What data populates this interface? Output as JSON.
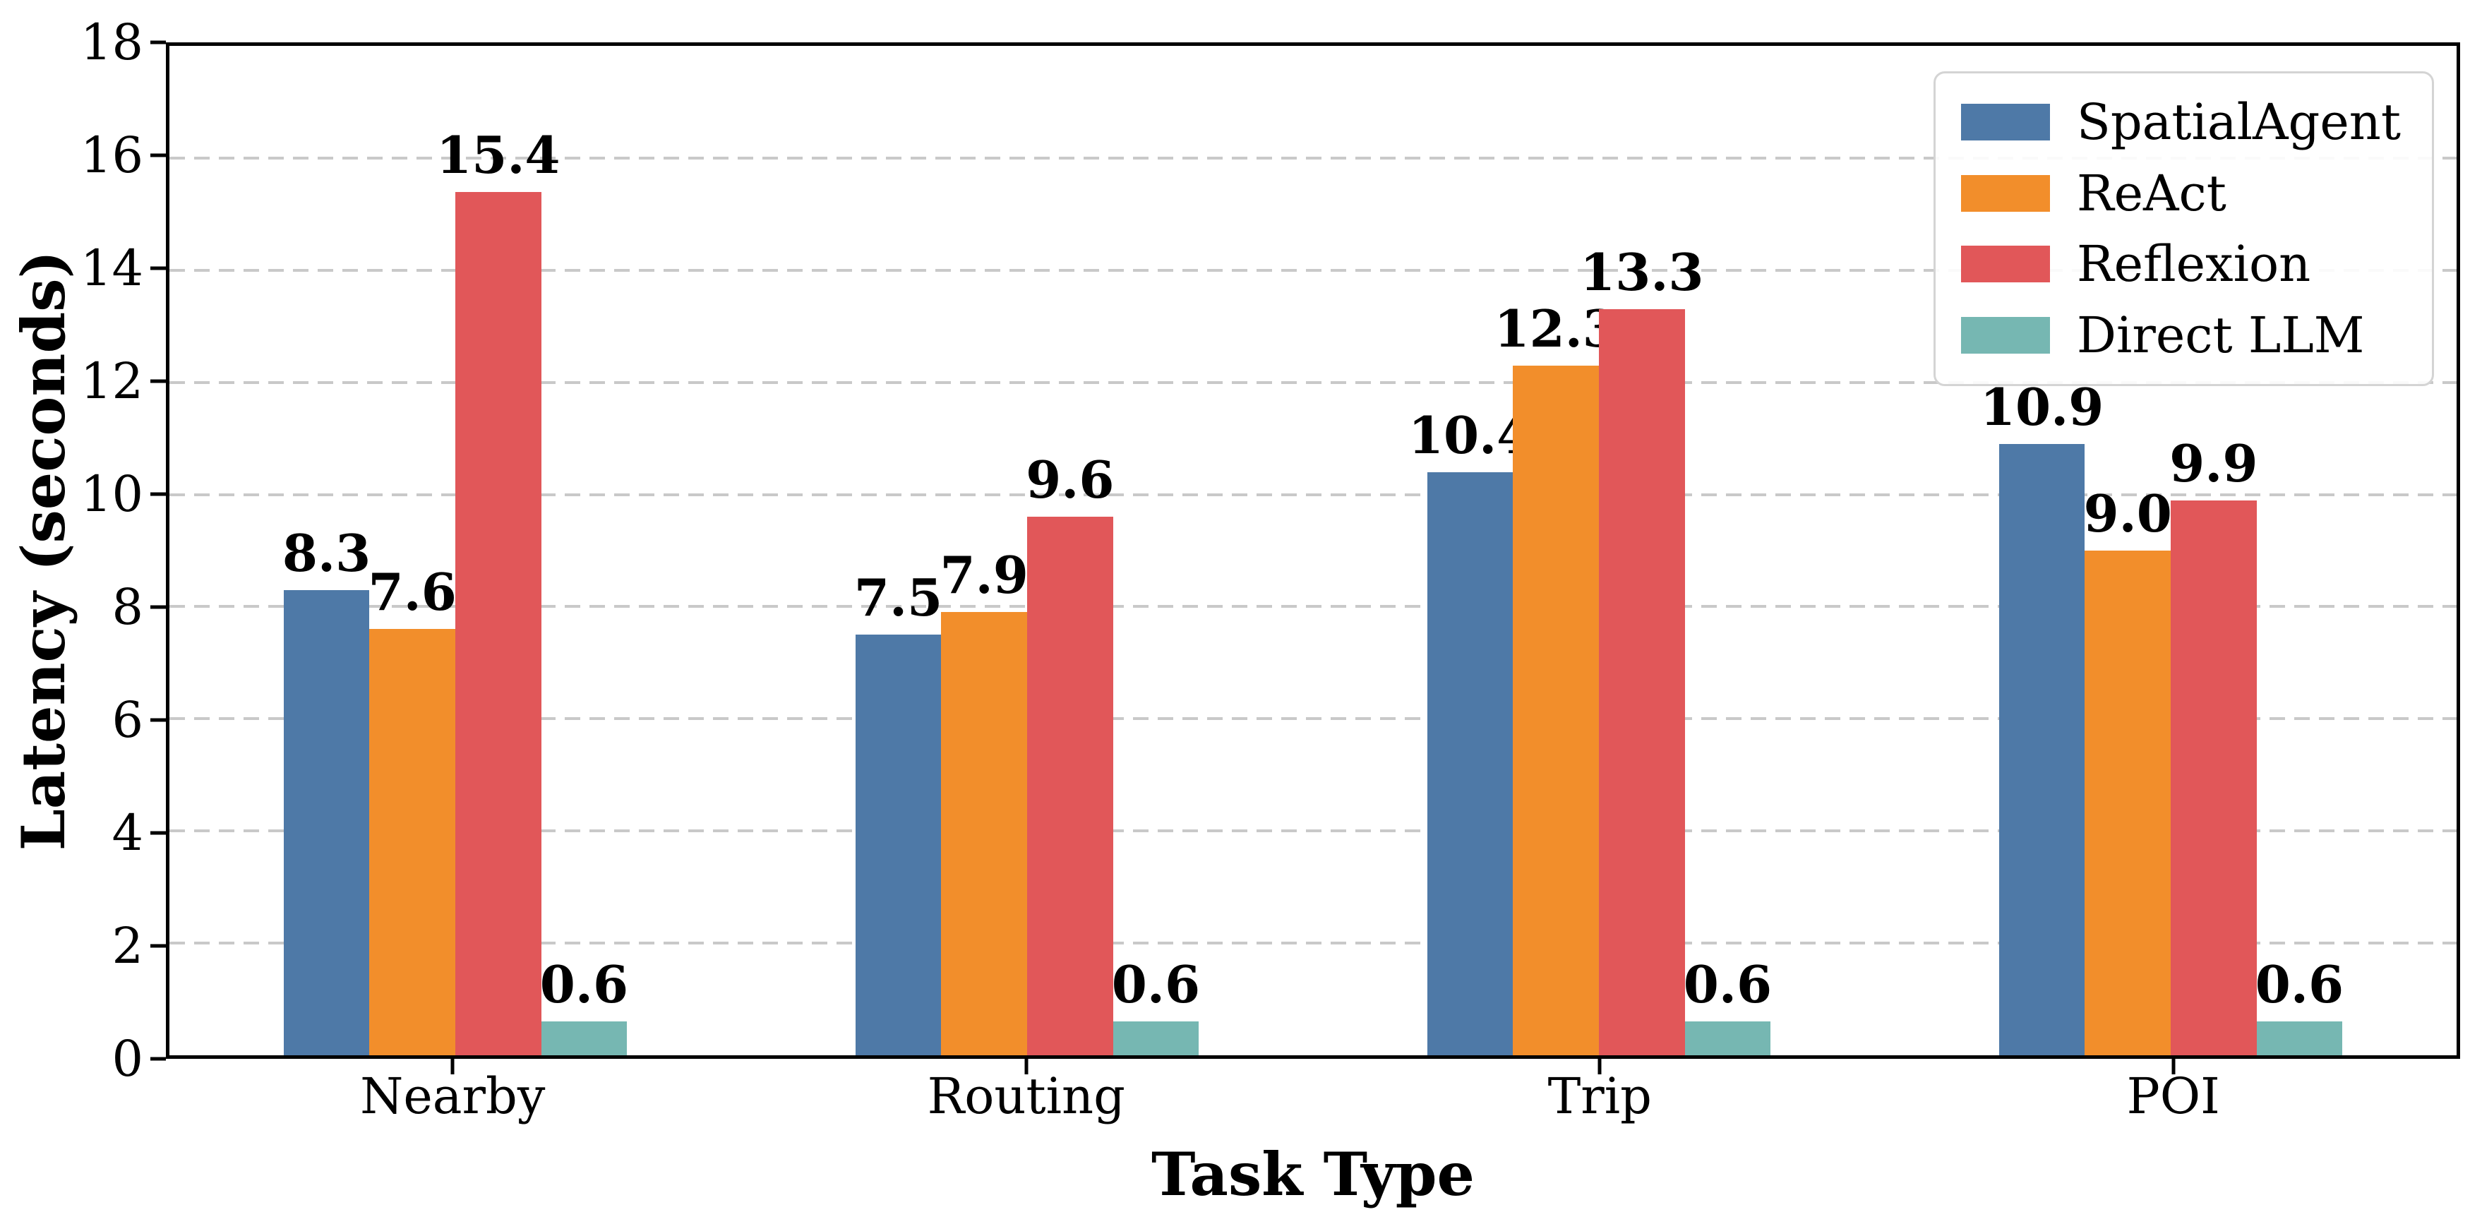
{
  "chart_data": {
    "type": "bar",
    "xlabel": "Task Type",
    "ylabel": "Latency (seconds)",
    "categories": [
      "Nearby",
      "Routing",
      "Trip",
      "POI"
    ],
    "series": [
      {
        "name": "SpatialAgent",
        "color": "#4E79A7",
        "values": [
          8.3,
          7.5,
          10.4,
          10.9
        ],
        "labels": [
          "8.3",
          "7.5",
          "10.4",
          "10.9"
        ]
      },
      {
        "name": "ReAct",
        "color": "#F28E2B",
        "values": [
          7.6,
          7.9,
          12.3,
          9.0
        ],
        "labels": [
          "7.6",
          "7.9",
          "12.3",
          "9.0"
        ]
      },
      {
        "name": "Reflexion",
        "color": "#E15759",
        "values": [
          15.4,
          9.6,
          13.3,
          9.9
        ],
        "labels": [
          "15.4",
          "9.6",
          "13.3",
          "9.9"
        ]
      },
      {
        "name": "Direct LLM",
        "color": "#76B7B2",
        "values": [
          0.6,
          0.6,
          0.6,
          0.6
        ],
        "labels": [
          "0.6",
          "0.6",
          "0.6",
          "0.6"
        ]
      }
    ],
    "ylim": [
      0,
      18
    ],
    "yticks": [
      0,
      2,
      4,
      6,
      8,
      10,
      12,
      14,
      16,
      18
    ],
    "ytick_labels": [
      "0",
      "2",
      "4",
      "6",
      "8",
      "10",
      "12",
      "14",
      "16",
      "18"
    ],
    "grid": "horizontal-dashed",
    "grid_color": "#c9c9c9",
    "legend_position": "upper-right",
    "value_labels": true
  }
}
